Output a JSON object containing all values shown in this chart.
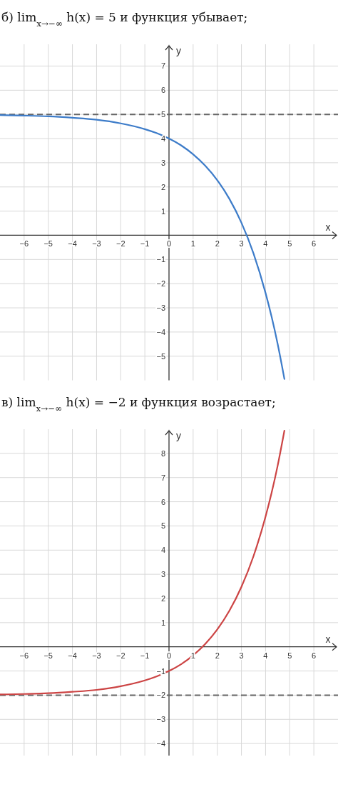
{
  "chart_data": [
    {
      "type": "line",
      "title": "б) lim$_{x→−∞}$ h(x) = 5 и функция убывает;",
      "xlabel": "x",
      "ylabel": "y",
      "xlim": [
        -7,
        7
      ],
      "ylim": [
        -6,
        7.9
      ],
      "xticks": [
        {
          "value": -6,
          "label": "−6"
        },
        {
          "value": -5,
          "label": "−5"
        },
        {
          "value": -4,
          "label": "−4"
        },
        {
          "value": -3,
          "label": "−3"
        },
        {
          "value": -2,
          "label": "−2"
        },
        {
          "value": -1,
          "label": "−1"
        },
        0,
        1,
        2,
        3,
        4,
        5,
        6
      ],
      "yticks": [
        {
          "value": -5,
          "label": "−5"
        },
        {
          "value": -4,
          "label": "−4"
        },
        {
          "value": -3,
          "label": "−3"
        },
        {
          "value": -2,
          "label": "−2"
        },
        {
          "value": -1,
          "label": "−1"
        },
        1,
        2,
        3,
        4,
        5,
        6,
        7
      ],
      "grid": true,
      "ref_lines": [
        {
          "axis": "y",
          "value": 5,
          "color": "#666666",
          "line_style": "dashed"
        }
      ],
      "series": [
        {
          "color": "#3d7cc9",
          "x": [
            -7,
            -6,
            -5,
            -4,
            -3,
            -2,
            -1,
            -0.5,
            0,
            0.5,
            1,
            1.5,
            2,
            2.5,
            3,
            3.5,
            4,
            4.25,
            4.5,
            4.78
          ],
          "values": [
            4.97,
            4.95,
            4.92,
            4.86,
            4.78,
            4.63,
            4.39,
            4.22,
            4,
            3.72,
            3.35,
            2.88,
            2.28,
            1.51,
            0.52,
            -0.75,
            -2.39,
            -3.37,
            -4.49,
            -5.94
          ]
        }
      ]
    },
    {
      "type": "line",
      "title": "в) lim$_{x→−∞}$ h(x) = −2 и функция возрастает;",
      "xlabel": "x",
      "ylabel": "y",
      "xlim": [
        -7,
        7
      ],
      "ylim": [
        -4.5,
        9
      ],
      "xticks": [
        {
          "value": -6,
          "label": "−6"
        },
        {
          "value": -5,
          "label": "−5"
        },
        {
          "value": -4,
          "label": "−4"
        },
        {
          "value": -3,
          "label": "−3"
        },
        {
          "value": -2,
          "label": "−2"
        },
        {
          "value": -1,
          "label": "−1"
        },
        0,
        1,
        2,
        3,
        4,
        5,
        6
      ],
      "yticks": [
        {
          "value": -4,
          "label": "−4"
        },
        {
          "value": -3,
          "label": "−3"
        },
        {
          "value": -2,
          "label": "−2"
        },
        {
          "value": -1,
          "label": "−1"
        },
        1,
        2,
        3,
        4,
        5,
        6,
        7,
        8
      ],
      "grid": true,
      "ref_lines": [
        {
          "axis": "y",
          "value": -2,
          "color": "#666666",
          "line_style": "dashed"
        }
      ],
      "series": [
        {
          "color": "#cc4444",
          "x": [
            -7,
            -6,
            -5,
            -4,
            -3,
            -2,
            -1,
            -0.5,
            0,
            0.5,
            1,
            1.5,
            2,
            2.5,
            3,
            3.5,
            4,
            4.25,
            4.5,
            4.78
          ],
          "values": [
            -1.97,
            -1.95,
            -1.92,
            -1.86,
            -1.78,
            -1.63,
            -1.39,
            -1.22,
            -1,
            -0.72,
            -0.35,
            0.12,
            0.72,
            1.49,
            2.48,
            3.75,
            5.39,
            6.37,
            7.49,
            8.94
          ]
        }
      ]
    }
  ]
}
